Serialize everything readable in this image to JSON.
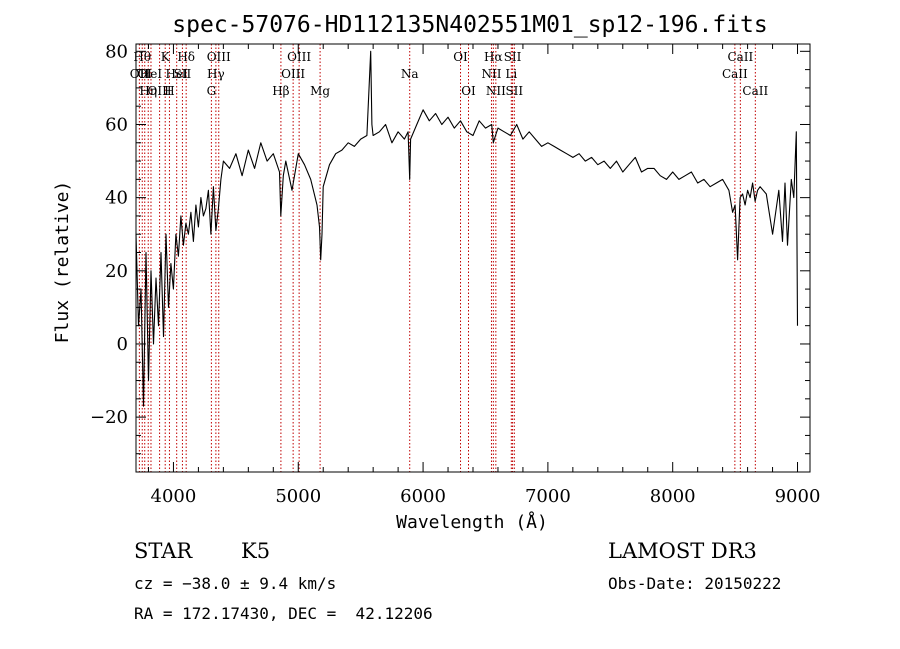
{
  "chart_data": {
    "type": "line",
    "title": "spec-57076-HD112135N402551M01_sp12-196.fits",
    "xlabel": "Wavelength (Å)",
    "ylabel": "Flux (relative)",
    "xlim": [
      3700,
      9100
    ],
    "ylim": [
      -35,
      82
    ],
    "x_ticks": [
      4000,
      5000,
      6000,
      7000,
      8000,
      9000
    ],
    "x_tick_labels": [
      "4000",
      "5000",
      "6000",
      "7000",
      "8000",
      "9000"
    ],
    "y_ticks": [
      -20,
      0,
      20,
      40,
      60,
      80
    ],
    "y_tick_labels": [
      "−20",
      "0",
      "20",
      "40",
      "60",
      "80"
    ],
    "series": [
      {
        "name": "spectrum",
        "x": [
          3700,
          3720,
          3740,
          3760,
          3780,
          3800,
          3820,
          3840,
          3860,
          3880,
          3900,
          3920,
          3940,
          3960,
          3980,
          4000,
          4020,
          4040,
          4060,
          4080,
          4100,
          4120,
          4140,
          4160,
          4180,
          4200,
          4220,
          4240,
          4260,
          4280,
          4300,
          4320,
          4340,
          4360,
          4380,
          4400,
          4450,
          4500,
          4550,
          4600,
          4650,
          4700,
          4750,
          4800,
          4850,
          4860,
          4880,
          4900,
          4950,
          5000,
          5050,
          5100,
          5150,
          5170,
          5180,
          5190,
          5200,
          5250,
          5300,
          5350,
          5400,
          5450,
          5500,
          5550,
          5580,
          5590,
          5600,
          5650,
          5700,
          5750,
          5800,
          5850,
          5880,
          5893,
          5900,
          5950,
          6000,
          6050,
          6100,
          6150,
          6200,
          6250,
          6300,
          6350,
          6400,
          6450,
          6500,
          6550,
          6563,
          6580,
          6600,
          6650,
          6700,
          6750,
          6800,
          6850,
          6900,
          6950,
          7000,
          7050,
          7100,
          7150,
          7200,
          7250,
          7300,
          7350,
          7400,
          7450,
          7500,
          7550,
          7600,
          7650,
          7700,
          7750,
          7800,
          7850,
          7900,
          7950,
          8000,
          8050,
          8100,
          8150,
          8200,
          8250,
          8300,
          8350,
          8400,
          8450,
          8480,
          8500,
          8520,
          8540,
          8560,
          8580,
          8600,
          8620,
          8640,
          8660,
          8680,
          8700,
          8750,
          8800,
          8850,
          8880,
          8900,
          8920,
          8950,
          8970,
          8990,
          9000
        ],
        "y": [
          30,
          5,
          15,
          -17,
          25,
          -10,
          20,
          0,
          18,
          5,
          25,
          2,
          30,
          10,
          22,
          15,
          30,
          24,
          35,
          27,
          33,
          30,
          36,
          28,
          38,
          32,
          40,
          35,
          37,
          42,
          30,
          43,
          31,
          37,
          45,
          50,
          48,
          52,
          46,
          53,
          48,
          55,
          50,
          52,
          47,
          35,
          46,
          50,
          42,
          52,
          49,
          45,
          38,
          32,
          23,
          30,
          43,
          49,
          52,
          53,
          55,
          54,
          56,
          57,
          80,
          60,
          57,
          58,
          60,
          55,
          58,
          56,
          58,
          45,
          56,
          60,
          64,
          61,
          63,
          60,
          62,
          59,
          61,
          58,
          57,
          61,
          59,
          60,
          55,
          57,
          59,
          58,
          57,
          60,
          56,
          58,
          56,
          54,
          55,
          54,
          53,
          52,
          51,
          52,
          50,
          51,
          49,
          50,
          48,
          50,
          47,
          49,
          51,
          47,
          48,
          48,
          46,
          45,
          47,
          45,
          46,
          47,
          44,
          45,
          43,
          44,
          45,
          42,
          36,
          38,
          23,
          40,
          41,
          38,
          42,
          40,
          44,
          39,
          42,
          43,
          41,
          30,
          42,
          28,
          44,
          27,
          45,
          40,
          58,
          5
        ],
        "color": "#000000"
      }
    ],
    "line_labels": [
      {
        "wavelength": 3727,
        "label": "OII",
        "row": 2,
        "color": "#c00000"
      },
      {
        "wavelength": 3750,
        "label": "Hθ",
        "row": 1,
        "color": "#c00000"
      },
      {
        "wavelength": 3770,
        "label": "OI",
        "row": 2,
        "color": "#c00000"
      },
      {
        "wavelength": 3798,
        "label": "Hη",
        "row": 3,
        "color": "#c00000"
      },
      {
        "wavelength": 3820,
        "label": "HeI",
        "row": 2,
        "color": "#c00000"
      },
      {
        "wavelength": 3889,
        "label": "OIII",
        "row": 3,
        "color": "#c00000"
      },
      {
        "wavelength": 3934,
        "label": "K",
        "row": 1,
        "color": "#c00000"
      },
      {
        "wavelength": 3968,
        "label": "H",
        "row": 3,
        "color": "#c00000"
      },
      {
        "wavelength": 4026,
        "label": "HeI",
        "row": 2,
        "color": "#c00000"
      },
      {
        "wavelength": 4072,
        "label": "SII",
        "row": 2,
        "color": "#c00000"
      },
      {
        "wavelength": 4102,
        "label": "Hδ",
        "row": 1,
        "color": "#c00000"
      },
      {
        "wavelength": 4304,
        "label": "G",
        "row": 3,
        "color": "#c00000"
      },
      {
        "wavelength": 4340,
        "label": "Hγ",
        "row": 2,
        "color": "#c00000"
      },
      {
        "wavelength": 4363,
        "label": "OIII",
        "row": 1,
        "color": "#c00000"
      },
      {
        "wavelength": 4861,
        "label": "Hβ",
        "row": 3,
        "color": "#c00000"
      },
      {
        "wavelength": 4959,
        "label": "OIII",
        "row": 2,
        "color": "#c00000"
      },
      {
        "wavelength": 5007,
        "label": "OIII",
        "row": 1,
        "color": "#c00000"
      },
      {
        "wavelength": 5175,
        "label": "Mg",
        "row": 3,
        "color": "#c00000"
      },
      {
        "wavelength": 5893,
        "label": "Na",
        "row": 2,
        "color": "#c00000"
      },
      {
        "wavelength": 6300,
        "label": "OI",
        "row": 1,
        "color": "#c00000"
      },
      {
        "wavelength": 6364,
        "label": "OI",
        "row": 3,
        "color": "#c00000"
      },
      {
        "wavelength": 6548,
        "label": "NII",
        "row": 2,
        "color": "#c00000"
      },
      {
        "wavelength": 6563,
        "label": "Hα",
        "row": 1,
        "color": "#c00000"
      },
      {
        "wavelength": 6583,
        "label": "NII",
        "row": 3,
        "color": "#c00000"
      },
      {
        "wavelength": 6707,
        "label": "Li",
        "row": 2,
        "color": "#c00000"
      },
      {
        "wavelength": 6717,
        "label": "SII",
        "row": 1,
        "color": "#c00000"
      },
      {
        "wavelength": 6731,
        "label": "SII",
        "row": 3,
        "color": "#c00000"
      },
      {
        "wavelength": 8498,
        "label": "CaII",
        "row": 2,
        "color": "#c00000"
      },
      {
        "wavelength": 8542,
        "label": "CaII",
        "row": 1,
        "color": "#c00000"
      },
      {
        "wavelength": 8662,
        "label": "CaII",
        "row": 3,
        "color": "#c00000"
      }
    ]
  },
  "info": {
    "object_class": "STAR",
    "subclass": "K5",
    "survey": "LAMOST DR3",
    "cz_text": "cz = −38.0 ± 9.4 km/s",
    "obs_date_text": "Obs-Date: 20150222",
    "coords_text": "RA = 172.17430, DEC =  42.12206"
  }
}
